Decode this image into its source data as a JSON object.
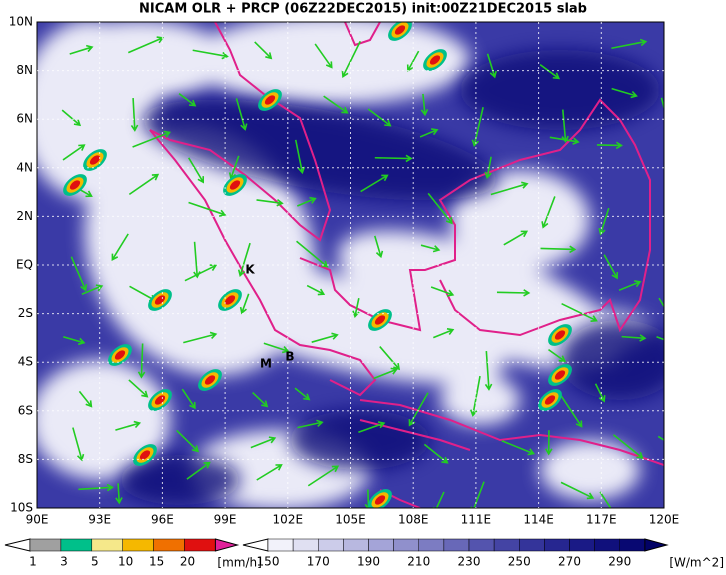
{
  "title": "NICAM OLR + PRCP (06Z22DEC2015) init:00Z21DEC2015 slab",
  "map": {
    "lat_labels": [
      "10N",
      "8N",
      "6N",
      "4N",
      "2N",
      "EQ",
      "2S",
      "4S",
      "6S",
      "8S",
      "10S"
    ],
    "lon_labels": [
      "90E",
      "93E",
      "96E",
      "99E",
      "102E",
      "105E",
      "108E",
      "111E",
      "114E",
      "117E",
      "120E"
    ],
    "markers": [
      "K",
      "M",
      "B"
    ],
    "coast_color": "#e0208a",
    "arrow_color": "#22cc22"
  },
  "precip_scale": {
    "labels": [
      "1",
      "3",
      "5",
      "10",
      "15",
      "20"
    ],
    "unit": "[mm/h]",
    "colors": [
      "#a0a0a0",
      "#00c08a",
      "#f5e88a",
      "#f5b800",
      "#f07000",
      "#e01010",
      "#e0209a"
    ]
  },
  "olr_scale": {
    "labels": [
      "150",
      "170",
      "190",
      "210",
      "230",
      "250",
      "270",
      "290"
    ],
    "unit": "[W/m^2]",
    "colors": [
      "#f2f2fa",
      "#e0e0f2",
      "#ccccea",
      "#b8b8e0",
      "#a4a4d8",
      "#9090cc",
      "#7c7cc2",
      "#6868b8",
      "#5454ae",
      "#4444a4",
      "#34349a",
      "#262690",
      "#1a1a86",
      "#10107c",
      "#080872",
      "#020266"
    ]
  }
}
